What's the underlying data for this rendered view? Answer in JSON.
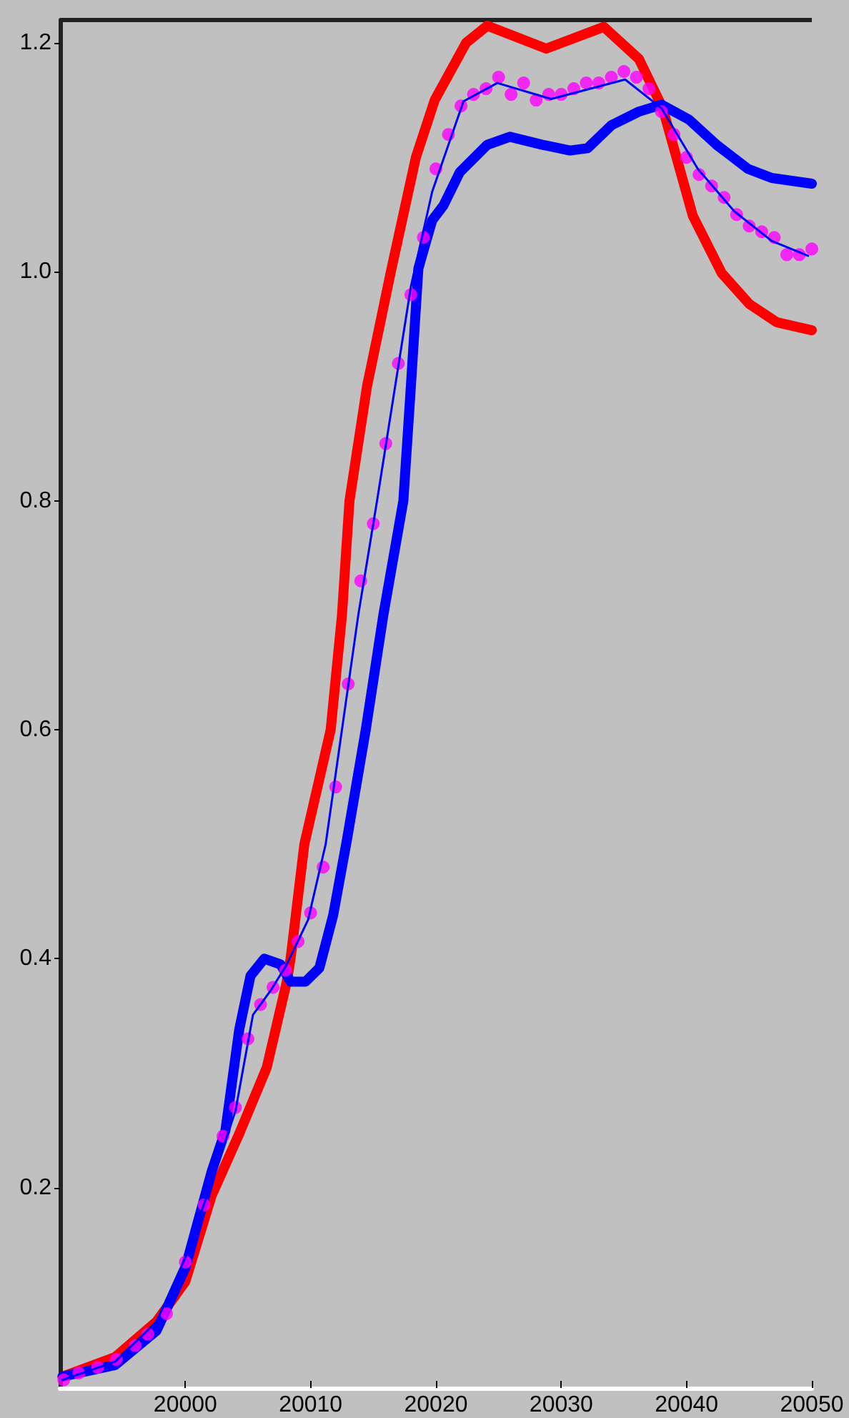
{
  "chart_data": {
    "type": "line",
    "xlim": [
      19990,
      20050
    ],
    "xticks": [
      20000,
      20010,
      20020,
      20030,
      20040,
      20050
    ],
    "ylim": [
      0.025,
      1.22
    ],
    "yticks": [
      0.2,
      0.4,
      0.6,
      0.8,
      {
        "value": 1,
        "label": "1.0"
      },
      1.2
    ],
    "grid": false,
    "series": [
      {
        "color": "#ff0000",
        "x": [
          19990.2,
          19994.4,
          19997.7,
          20000,
          20002.1,
          20004.3,
          20006.5,
          20008.1,
          20008.4,
          20009.5,
          20011.6,
          20012.5,
          20013.1,
          20014.5,
          20016.4,
          20018.4,
          20019.9,
          20022.4,
          20024.1,
          20028.8,
          20033.4,
          20036.2,
          20038.1,
          20040.5,
          20042.8,
          20045,
          20047.2,
          20050
        ],
        "values": [
          0.035,
          0.052,
          0.083,
          0.118,
          0.193,
          0.247,
          0.305,
          0.38,
          0.4,
          0.5,
          0.6,
          0.7,
          0.8,
          0.9,
          1.0,
          1.1,
          1.15,
          1.2,
          1.215,
          1.195,
          1.214,
          1.186,
          1.143,
          1.049,
          0.999,
          0.972,
          0.956,
          0.949
        ]
      },
      {
        "color": "#0000ff",
        "x": [
          19990.2,
          19994.4,
          19997.7,
          20000,
          20002.1,
          20003.2,
          20004.3,
          20005.2,
          20006.3,
          20007.6,
          20008.4,
          20009.6,
          20010.7,
          20011.8,
          20012.9,
          20014.4,
          20015.8,
          20017.4,
          20018,
          20018.6,
          20019.7,
          20020.6,
          20021.9,
          20024.1,
          20025.9,
          20028.5,
          20030.7,
          20032.1,
          20034,
          20036.2,
          20038,
          20040.2,
          20042.4,
          20044.9,
          20046.8,
          20050
        ],
        "values": [
          0.035,
          0.045,
          0.075,
          0.13,
          0.214,
          0.25,
          0.338,
          0.385,
          0.4,
          0.395,
          0.38,
          0.38,
          0.392,
          0.438,
          0.504,
          0.6,
          0.7,
          0.8,
          0.9,
          1.003,
          1.045,
          1.058,
          1.087,
          1.111,
          1.118,
          1.111,
          1.106,
          1.108,
          1.128,
          1.14,
          1.146,
          1.133,
          1.111,
          1.09,
          1.082,
          1.077
        ]
      },
      {
        "type": "scatter",
        "color": "#ff00ff",
        "marker": "circle",
        "x": [
          19990.3,
          19991.5,
          19993,
          19994.5,
          19996,
          19997,
          19998.5,
          20000,
          20001.5,
          20003,
          20004,
          20005,
          20006,
          20007,
          20008,
          20009,
          20010,
          20011,
          20012,
          20013,
          20014,
          20015,
          20016,
          20017,
          20018,
          20019,
          20020,
          20021,
          20022,
          20023,
          20024,
          20025,
          20026,
          20027,
          20028,
          20029,
          20030,
          20031,
          20032,
          20033,
          20034,
          20035,
          20036,
          20037,
          20038,
          20039,
          20040,
          20041,
          20042,
          20043,
          20044,
          20045,
          20046,
          20047,
          20048,
          20049,
          20050
        ],
        "values": [
          0.032,
          0.038,
          0.043,
          0.05,
          0.062,
          0.072,
          0.09,
          0.135,
          0.185,
          0.245,
          0.27,
          0.33,
          0.36,
          0.375,
          0.39,
          0.415,
          0.44,
          0.48,
          0.55,
          0.64,
          0.73,
          0.78,
          0.85,
          0.92,
          0.98,
          1.03,
          1.09,
          1.12,
          1.145,
          1.155,
          1.16,
          1.17,
          1.155,
          1.165,
          1.15,
          1.155,
          1.155,
          1.16,
          1.165,
          1.165,
          1.17,
          1.175,
          1.17,
          1.16,
          1.14,
          1.12,
          1.1,
          1.085,
          1.075,
          1.065,
          1.05,
          1.04,
          1.035,
          1.03,
          1.015,
          1.015,
          1.02
        ]
      },
      {
        "color": "#0000ff",
        "x": [
          19990.2,
          19994.4,
          19997.7,
          20000,
          20002.1,
          20004,
          20005.4,
          20006.8,
          20008.1,
          20009.8,
          20011.2,
          20012.5,
          20013.8,
          20015.3,
          20018,
          20019.7,
          20022.2,
          20024.9,
          20029.2,
          20035.1,
          20038,
          20040.9,
          20043.8,
          20046.8,
          20049.7
        ],
        "values": [
          0.032,
          0.048,
          0.083,
          0.139,
          0.205,
          0.267,
          0.351,
          0.372,
          0.395,
          0.434,
          0.5,
          0.6,
          0.7,
          0.8,
          0.987,
          1.07,
          1.149,
          1.165,
          1.151,
          1.168,
          1.143,
          1.09,
          1.053,
          1.027,
          1.014
        ]
      }
    ]
  }
}
